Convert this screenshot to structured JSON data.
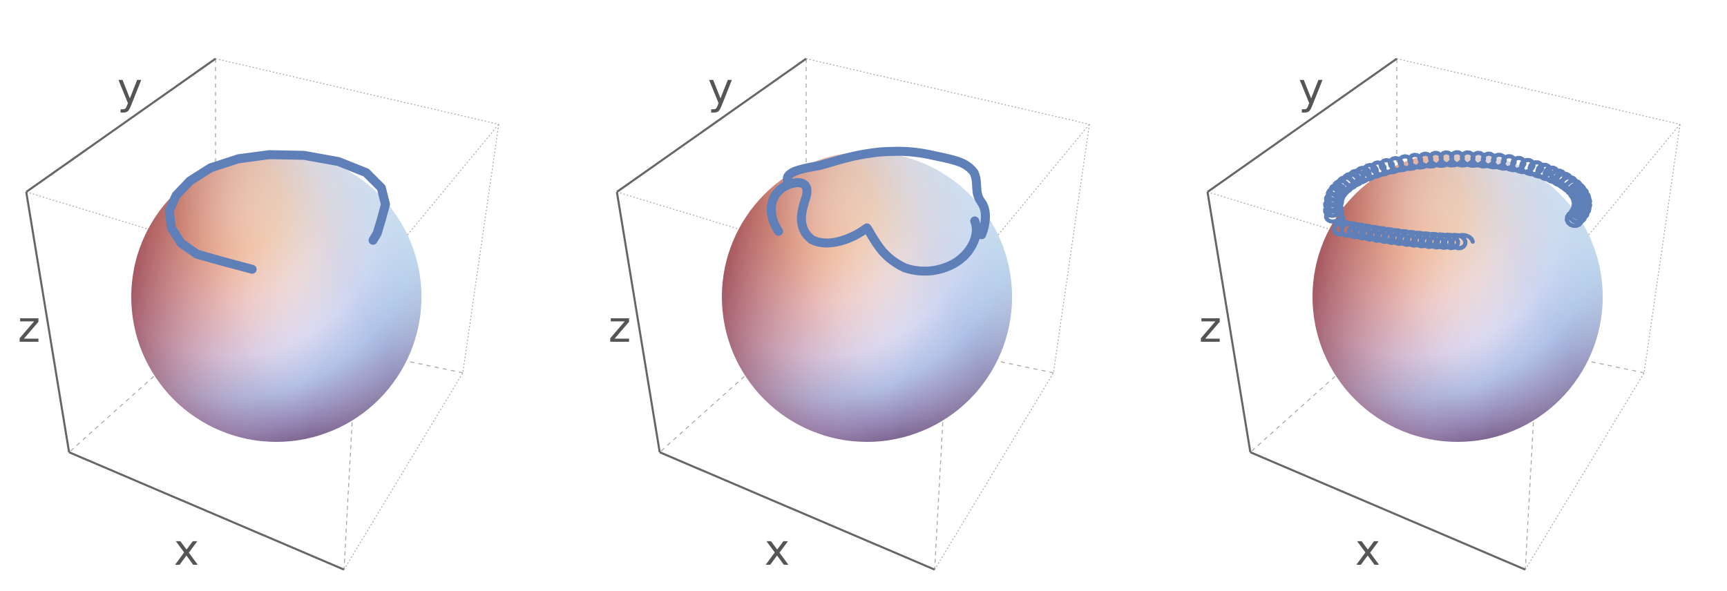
{
  "figure": {
    "panels": [
      {
        "id": "panel-1",
        "axis_labels": {
          "x": "x",
          "y": "y",
          "z": "z"
        },
        "trajectory": "looped arc"
      },
      {
        "id": "panel-2",
        "axis_labels": {
          "x": "x",
          "y": "y",
          "z": "z"
        },
        "trajectory": "scalloped loops"
      },
      {
        "id": "panel-3",
        "axis_labels": {
          "x": "x",
          "y": "y",
          "z": "z"
        },
        "trajectory": "helical coils"
      }
    ],
    "colors": {
      "background": "#ffffff",
      "box_edge_dark": "#666666",
      "box_edge_light": "#aaaaaa",
      "trajectory": "#5f7fb8",
      "label": "#555555"
    }
  }
}
